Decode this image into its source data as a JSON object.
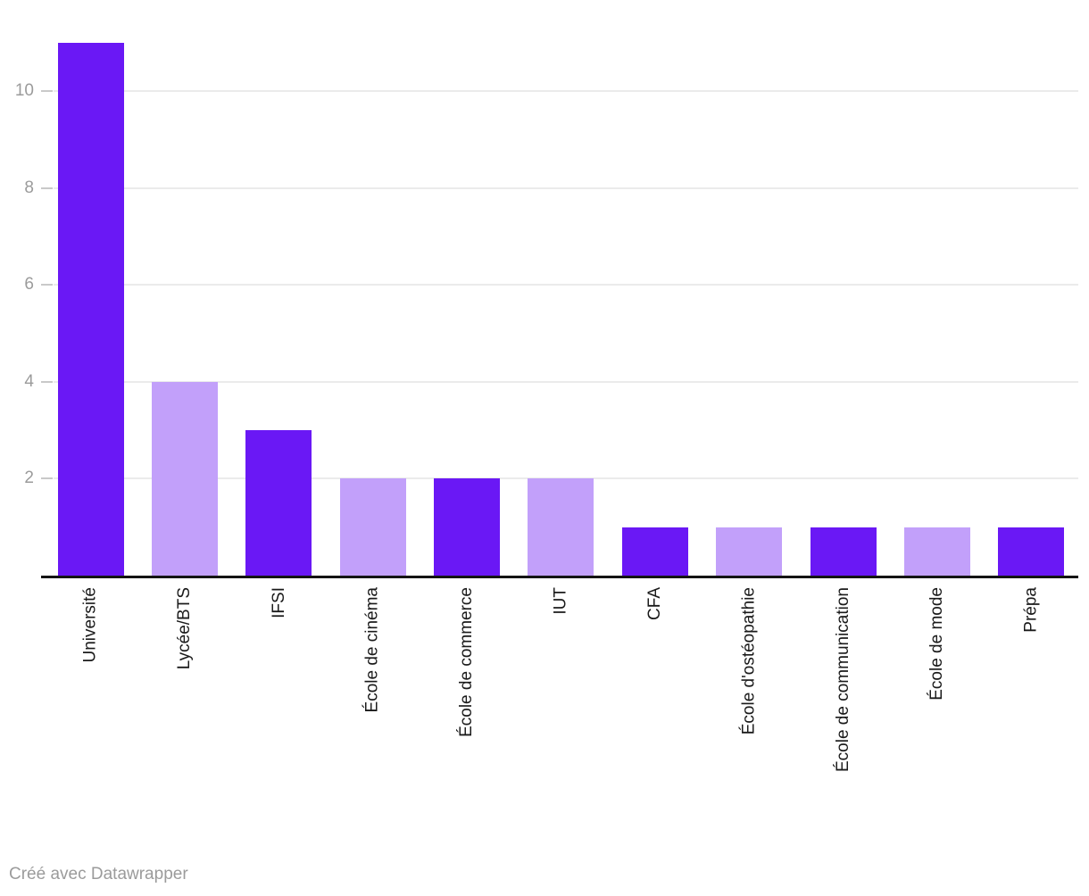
{
  "chart_data": {
    "type": "bar",
    "title": "",
    "xlabel": "",
    "ylabel": "",
    "categories": [
      "Université",
      "Lycée/BTS",
      "IFSI",
      "École de cinéma",
      "École de commerce",
      "IUT",
      "CFA",
      "École d'ostéopathie",
      "École de communication",
      "École de mode",
      "Prépa"
    ],
    "values": [
      11,
      4,
      3,
      2,
      2,
      2,
      1,
      1,
      1,
      1,
      1
    ],
    "bar_colors": [
      "#6a18f5",
      "#c2a0fa",
      "#6a18f5",
      "#c2a0fa",
      "#6a18f5",
      "#c2a0fa",
      "#6a18f5",
      "#c2a0fa",
      "#6a18f5",
      "#c2a0fa",
      "#6a18f5"
    ],
    "yticks": [
      2,
      4,
      6,
      8,
      10
    ],
    "ylim": [
      0,
      11.2
    ],
    "grid": true,
    "legend_position": "none",
    "colors": {
      "bar_dark": "#6a18f5",
      "bar_light": "#c2a0fa",
      "gridline": "#ebebeb",
      "tick_mark": "#c9c9c9",
      "tick_label": "#9b9b9b",
      "axis_line": "#141414",
      "category_label": "#1a1a1a",
      "footer_text": "#9b9b9b"
    }
  },
  "footer": {
    "attribution": "Créé avec Datawrapper"
  }
}
